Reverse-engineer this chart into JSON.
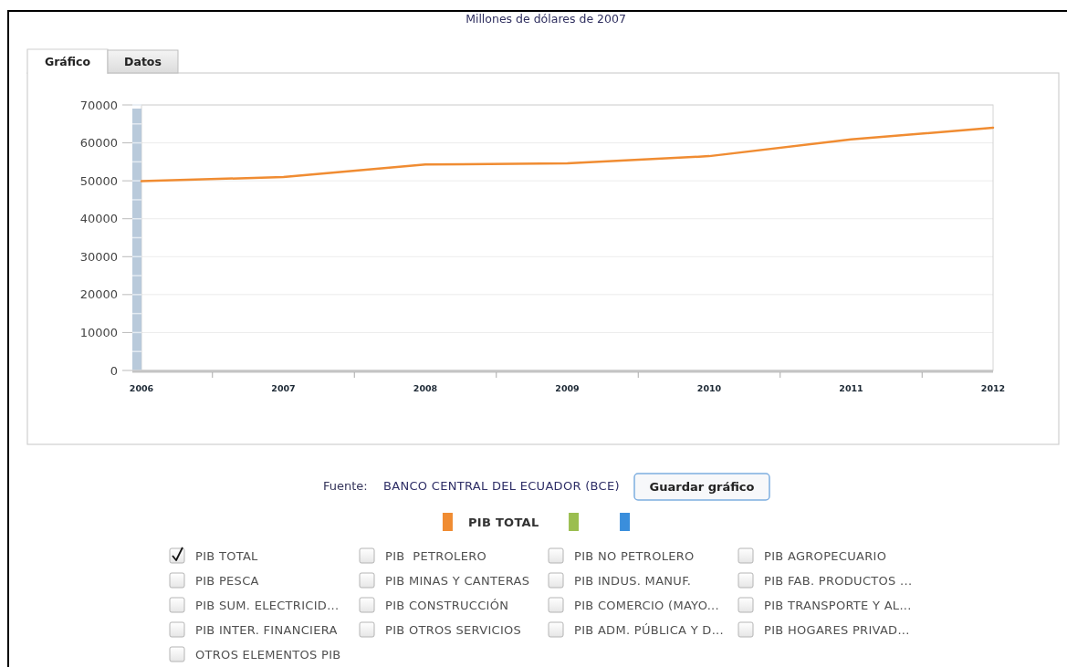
{
  "chart_data": {
    "type": "line",
    "title": "Millones de dólares de 2007",
    "x": [
      2006,
      2007,
      2008,
      2009,
      2010,
      2011,
      2012
    ],
    "xlim": [
      2006,
      2012
    ],
    "xticks": [
      2006,
      {
        "value": 2006.5,
        "label": null
      },
      2007,
      {
        "value": 2007.5,
        "label": null
      },
      2008,
      {
        "value": 2008.5,
        "label": null
      },
      2009,
      {
        "value": 2009.5,
        "label": null
      },
      2010,
      {
        "value": 2010.5,
        "label": null
      },
      2011,
      {
        "value": 2011.5,
        "label": null
      },
      2012
    ],
    "ylim": [
      0,
      70000
    ],
    "yticks": [
      0,
      10000,
      20000,
      30000,
      40000,
      50000,
      60000,
      70000
    ],
    "series": [
      {
        "name": "PIB TOTAL",
        "color": "#f08c32",
        "values": [
          49900,
          51000,
          54300,
          54600,
          56500,
          60900,
          64000
        ]
      },
      {
        "color": "#9bbe50",
        "values": [
          null,
          null,
          null,
          null,
          null,
          null,
          null
        ]
      },
      {
        "color": "#3a8edc",
        "values": [
          null,
          null,
          null,
          null,
          null,
          null,
          null
        ]
      }
    ],
    "grid": "y",
    "legend": "bottom",
    "annotations": [
      "Gráfico",
      "Datos",
      "Fuente:",
      "BANCO CENTRAL DEL ECUADOR (BCE)",
      "Guardar gráfico",
      "PIB TOTAL",
      "PIB  PETROLERO",
      "PIB NO PETROLERO",
      "PIB AGROPECUARIO",
      "PIB PESCA",
      "PIB MINAS Y CANTERAS",
      "PIB INDUS. MANUF.",
      "PIB FAB. PRODUCTOS ...",
      "PIB SUM. ELECTRICID...",
      "PIB CONSTRUCCIÓN",
      "PIB COMERCIO (MAYO...",
      "PIB TRANSPORTE Y AL...",
      "PIB INTER. FINANCIERA",
      "PIB OTROS SERVICIOS",
      "PIB ADM. PÚBLICA Y D...",
      "PIB HOGARES PRIVAD...",
      "OTROS ELEMENTOS PIB"
    ]
  }
}
